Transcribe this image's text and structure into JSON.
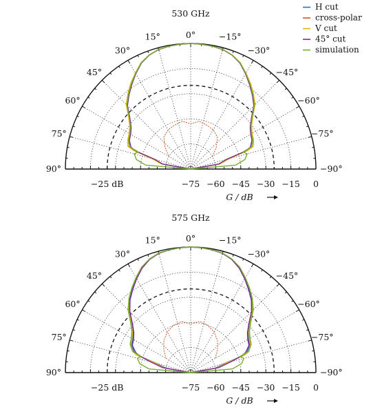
{
  "legend": [
    {
      "label": "H cut",
      "color": "#1f6fd1"
    },
    {
      "label": "cross-polar",
      "color": "#d9531e"
    },
    {
      "label": "V cut",
      "color": "#e8b400"
    },
    {
      "label": "45° cut",
      "color": "#7a2a98"
    },
    {
      "label": "simulation",
      "color": "#77ac30"
    }
  ],
  "chart_data": [
    {
      "type": "line",
      "projection": "polar-half",
      "title": "530 GHz",
      "xlabel": "G / dB",
      "angle_range_deg": [
        -90,
        90
      ],
      "gain_range_db": [
        -75,
        0
      ],
      "angle_ticks": [
        "90°",
        "75°",
        "60°",
        "45°",
        "30°",
        "15°",
        "0°",
        "−15°",
        "−30°",
        "−45°",
        "−60°",
        "−75°",
        "−90°"
      ],
      "radial_ticks": [
        "−75",
        "−60",
        "−45",
        "−30",
        "−15",
        "0"
      ],
      "left_tick": "−25 dB",
      "dashed_circle_db": -25,
      "grid": true,
      "series": [
        {
          "name": "H cut",
          "angles": [
            -90,
            -80,
            -75,
            -72,
            -70,
            -65,
            -60,
            -55,
            -50,
            -45,
            -40,
            -35,
            -30,
            -25,
            -20,
            -15,
            -10,
            -5,
            0,
            5,
            10,
            15,
            20,
            25,
            30,
            35,
            40,
            45,
            50,
            55,
            60,
            65,
            70,
            72,
            75,
            80,
            90
          ],
          "gain": [
            -75,
            -58,
            -52,
            -40,
            -36,
            -34,
            -33,
            -31,
            -27,
            -21,
            -17,
            -13,
            -9,
            -5,
            -2.5,
            -1,
            -0.5,
            -0.2,
            0,
            -0.2,
            -0.5,
            -1,
            -2.5,
            -5,
            -9,
            -13,
            -17,
            -21,
            -27,
            -31,
            -33,
            -34,
            -36,
            -40,
            -52,
            -58,
            -75
          ]
        },
        {
          "name": "cross-polar",
          "angles": [
            -60,
            -50,
            -40,
            -30,
            -20,
            -10,
            0,
            10,
            20,
            30,
            40,
            50,
            60
          ],
          "gain": [
            -60,
            -55,
            -50,
            -48,
            -47,
            -46,
            -48,
            -46,
            -47,
            -48,
            -50,
            -55,
            -60
          ]
        },
        {
          "name": "V cut",
          "angles": [
            -90,
            -80,
            -75,
            -72,
            -70,
            -65,
            -60,
            -55,
            -50,
            -45,
            -40,
            -35,
            -30,
            -25,
            -20,
            -15,
            -10,
            -5,
            0,
            5,
            10,
            15,
            20,
            25,
            30,
            35,
            40,
            45,
            50,
            55,
            60,
            65,
            70,
            72,
            75,
            80,
            90
          ],
          "gain": [
            -75,
            -57,
            -51,
            -39,
            -35,
            -33.5,
            -32.5,
            -30.5,
            -26.5,
            -20.5,
            -16.5,
            -12.5,
            -8.8,
            -4.8,
            -2.4,
            -1,
            -0.5,
            -0.2,
            0,
            -0.2,
            -0.5,
            -1,
            -2.4,
            -4.8,
            -8.8,
            -12.5,
            -16.5,
            -20.5,
            -26.5,
            -30.5,
            -32.5,
            -33.5,
            -35,
            -39,
            -51,
            -57,
            -75
          ]
        },
        {
          "name": "45° cut",
          "angles": [
            -90,
            -80,
            -75,
            -72,
            -70,
            -65,
            -60,
            -55,
            -50,
            -45,
            -40,
            -35,
            -30,
            -25,
            -20,
            -15,
            -10,
            -5,
            0,
            5,
            10,
            15,
            20,
            25,
            30,
            35,
            40,
            45,
            50,
            55,
            60,
            65,
            70,
            72,
            75,
            80,
            90
          ],
          "gain": [
            -75,
            -58,
            -53,
            -41,
            -37,
            -34.5,
            -33.5,
            -31.5,
            -27.5,
            -21.5,
            -17.5,
            -13.5,
            -9.3,
            -5.2,
            -2.6,
            -1.1,
            -0.5,
            -0.2,
            0,
            -0.2,
            -0.5,
            -1.1,
            -2.6,
            -5.2,
            -9.3,
            -13.5,
            -17.5,
            -21.5,
            -27.5,
            -31.5,
            -33.5,
            -34.5,
            -37,
            -41,
            -53,
            -58,
            -75
          ]
        },
        {
          "name": "simulation",
          "angles": [
            -90,
            -85,
            -80,
            -75,
            -72,
            -70,
            -65,
            -60,
            -55,
            -50,
            -45,
            -40,
            -35,
            -30,
            -25,
            -20,
            -15,
            -10,
            -5,
            0,
            5,
            10,
            15,
            20,
            25,
            30,
            35,
            40,
            45,
            50,
            55,
            60,
            65,
            70,
            72,
            75,
            80,
            85,
            90
          ],
          "gain": [
            -75,
            -48,
            -42,
            -40,
            -42,
            -36,
            -34,
            -33,
            -31,
            -27,
            -21,
            -17,
            -13,
            -9,
            -5,
            -2.5,
            -1,
            -0.5,
            -0.2,
            0,
            -0.2,
            -0.5,
            -1,
            -2.5,
            -5,
            -9,
            -13,
            -17,
            -21,
            -27,
            -31,
            -33,
            -34,
            -36,
            -42,
            -40,
            -42,
            -48,
            -75
          ]
        }
      ]
    },
    {
      "type": "line",
      "projection": "polar-half",
      "title": "575 GHz",
      "xlabel": "G / dB",
      "angle_range_deg": [
        -90,
        90
      ],
      "gain_range_db": [
        -75,
        0
      ],
      "angle_ticks": [
        "90°",
        "75°",
        "60°",
        "45°",
        "30°",
        "15°",
        "0°",
        "−15°",
        "−30°",
        "−45°",
        "−60°",
        "−75°",
        "−90°"
      ],
      "radial_ticks": [
        "−75",
        "−60",
        "−45",
        "−30",
        "−15",
        "0"
      ],
      "left_tick": "−25 dB",
      "dashed_circle_db": -25,
      "grid": true,
      "series": [
        {
          "name": "H cut",
          "angles": [
            -90,
            -80,
            -75,
            -72,
            -70,
            -65,
            -60,
            -55,
            -50,
            -45,
            -40,
            -35,
            -30,
            -25,
            -20,
            -15,
            -10,
            -5,
            0,
            5,
            10,
            15,
            20,
            25,
            30,
            35,
            40,
            45,
            50,
            55,
            60,
            65,
            70,
            72,
            75,
            80,
            90
          ],
          "gain": [
            -75,
            -60,
            -54,
            -42,
            -39,
            -36,
            -35,
            -33,
            -29,
            -23,
            -18,
            -14,
            -10,
            -6,
            -3,
            -1.2,
            -0.6,
            -0.2,
            0,
            -0.2,
            -0.6,
            -1.2,
            -3,
            -6,
            -10,
            -14,
            -18,
            -23,
            -29,
            -33,
            -35,
            -36,
            -39,
            -42,
            -54,
            -60,
            -75
          ]
        },
        {
          "name": "cross-polar",
          "angles": [
            -60,
            -50,
            -40,
            -30,
            -20,
            -10,
            0,
            10,
            20,
            30,
            40,
            50,
            60
          ],
          "gain": [
            -58,
            -54,
            -50,
            -47,
            -45,
            -44,
            -46,
            -44,
            -45,
            -47,
            -50,
            -54,
            -58
          ]
        },
        {
          "name": "V cut",
          "angles": [
            -90,
            -80,
            -75,
            -72,
            -70,
            -65,
            -60,
            -55,
            -50,
            -45,
            -40,
            -35,
            -30,
            -25,
            -20,
            -15,
            -10,
            -5,
            0,
            5,
            10,
            15,
            20,
            25,
            30,
            35,
            40,
            45,
            50,
            55,
            60,
            65,
            70,
            72,
            75,
            80,
            90
          ],
          "gain": [
            -75,
            -59,
            -53,
            -41,
            -38,
            -35.5,
            -34.5,
            -32.5,
            -28.5,
            -22.5,
            -17.5,
            -13.5,
            -9.6,
            -5.8,
            -2.9,
            -1.2,
            -0.6,
            -0.2,
            0,
            -0.2,
            -0.6,
            -1.2,
            -2.9,
            -5.8,
            -9.6,
            -13.5,
            -17.5,
            -22.5,
            -28.5,
            -32.5,
            -34.5,
            -35.5,
            -38,
            -41,
            -53,
            -59,
            -75
          ]
        },
        {
          "name": "45° cut",
          "angles": [
            -90,
            -80,
            -75,
            -72,
            -70,
            -65,
            -60,
            -55,
            -50,
            -45,
            -40,
            -35,
            -30,
            -25,
            -20,
            -15,
            -10,
            -5,
            0,
            5,
            10,
            15,
            20,
            25,
            30,
            35,
            40,
            45,
            50,
            55,
            60,
            65,
            70,
            72,
            75,
            80,
            90
          ],
          "gain": [
            -75,
            -58,
            -50,
            -43,
            -40,
            -36.5,
            -35.5,
            -33.5,
            -29.5,
            -23.5,
            -18.5,
            -14.5,
            -10.3,
            -6.2,
            -3.1,
            -1.3,
            -0.6,
            -0.2,
            0,
            -0.2,
            -0.6,
            -1.3,
            -3.1,
            -6.2,
            -10.3,
            -14.5,
            -18.5,
            -23.5,
            -29.5,
            -33.5,
            -35.5,
            -36.5,
            -40,
            -43,
            -50,
            -58,
            -75
          ]
        },
        {
          "name": "simulation",
          "angles": [
            -90,
            -85,
            -80,
            -75,
            -72,
            -70,
            -65,
            -60,
            -55,
            -50,
            -45,
            -40,
            -35,
            -30,
            -25,
            -20,
            -15,
            -10,
            -5,
            0,
            5,
            10,
            15,
            20,
            25,
            30,
            35,
            40,
            45,
            50,
            55,
            60,
            65,
            70,
            72,
            75,
            80,
            85,
            90
          ],
          "gain": [
            -75,
            -50,
            -44,
            -42,
            -44,
            -38,
            -35,
            -34,
            -32,
            -28,
            -22,
            -17.5,
            -13.5,
            -9.5,
            -5.5,
            -2.8,
            -1.1,
            -0.5,
            -0.2,
            0,
            -0.2,
            -0.5,
            -1.1,
            -2.8,
            -5.5,
            -9.5,
            -13.5,
            -17.5,
            -22,
            -28,
            -32,
            -34,
            -35,
            -38,
            -44,
            -42,
            -44,
            -50,
            -75
          ]
        }
      ]
    }
  ]
}
